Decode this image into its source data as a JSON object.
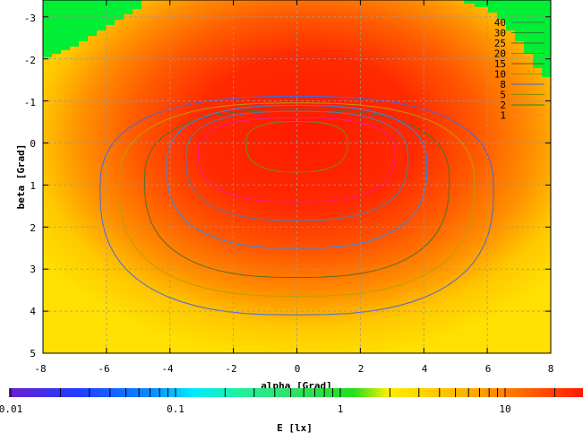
{
  "chart_data": {
    "type": "heatmap",
    "title": "",
    "xlabel": "alpha [Grad]",
    "ylabel": "beta [Grad]",
    "xlim": [
      -8,
      8
    ],
    "ylim": [
      -3.4,
      5
    ],
    "y_reversed": true,
    "xticks": [
      "-8",
      "-6",
      "-4",
      "-2",
      "0",
      "2",
      "4",
      "6",
      "8"
    ],
    "yticks": [
      "-3",
      "-2",
      "-1",
      "0",
      "1",
      "2",
      "3",
      "4",
      "5"
    ],
    "grid": true,
    "colorbar": {
      "label": "E [lx]",
      "scale": "log",
      "range": [
        0.01,
        30
      ],
      "ticks": [
        "0.01",
        "0.1",
        "1",
        "10"
      ]
    },
    "legend": {
      "placement": "top-right",
      "entries": [
        {
          "label": "40",
          "color": "#2e8b57"
        },
        {
          "label": "30",
          "color": "#228b22"
        },
        {
          "label": "25",
          "color": "#556b2f"
        },
        {
          "label": "20",
          "color": "#6b8e23"
        },
        {
          "label": "15",
          "color": "#8b4513"
        },
        {
          "label": "10",
          "color": "#b8860b"
        },
        {
          "label": "8",
          "color": "#4169e1"
        },
        {
          "label": "5",
          "color": "#8b8b00"
        },
        {
          "label": "2",
          "color": "#228b22"
        },
        {
          "label": "1",
          "color": "#ff69b4"
        }
      ]
    },
    "contours": [
      {
        "level": 2,
        "color": "#4169e1",
        "a": 6.2,
        "b": 2.6,
        "cy": 1.1
      },
      {
        "level": 5,
        "color": "#b8a000",
        "a": 5.6,
        "b": 2.3,
        "cy": 1.0
      },
      {
        "level": 8,
        "color": "#556b2f",
        "a": 4.8,
        "b": 2.0,
        "cy": 0.9
      },
      {
        "level": 10,
        "color": "#1e90ff",
        "a": 4.1,
        "b": 1.7,
        "cy": 0.55
      },
      {
        "level": 15,
        "color": "#4682b4",
        "a": 3.5,
        "b": 1.3,
        "cy": 0.35
      },
      {
        "level": 20,
        "color": "#ff1493",
        "a": 3.1,
        "b": 1.0,
        "cy": 0.25
      },
      {
        "level": 25,
        "color": "#6b8e23",
        "a": 1.6,
        "b": 0.6,
        "cy": 0.0
      }
    ]
  }
}
